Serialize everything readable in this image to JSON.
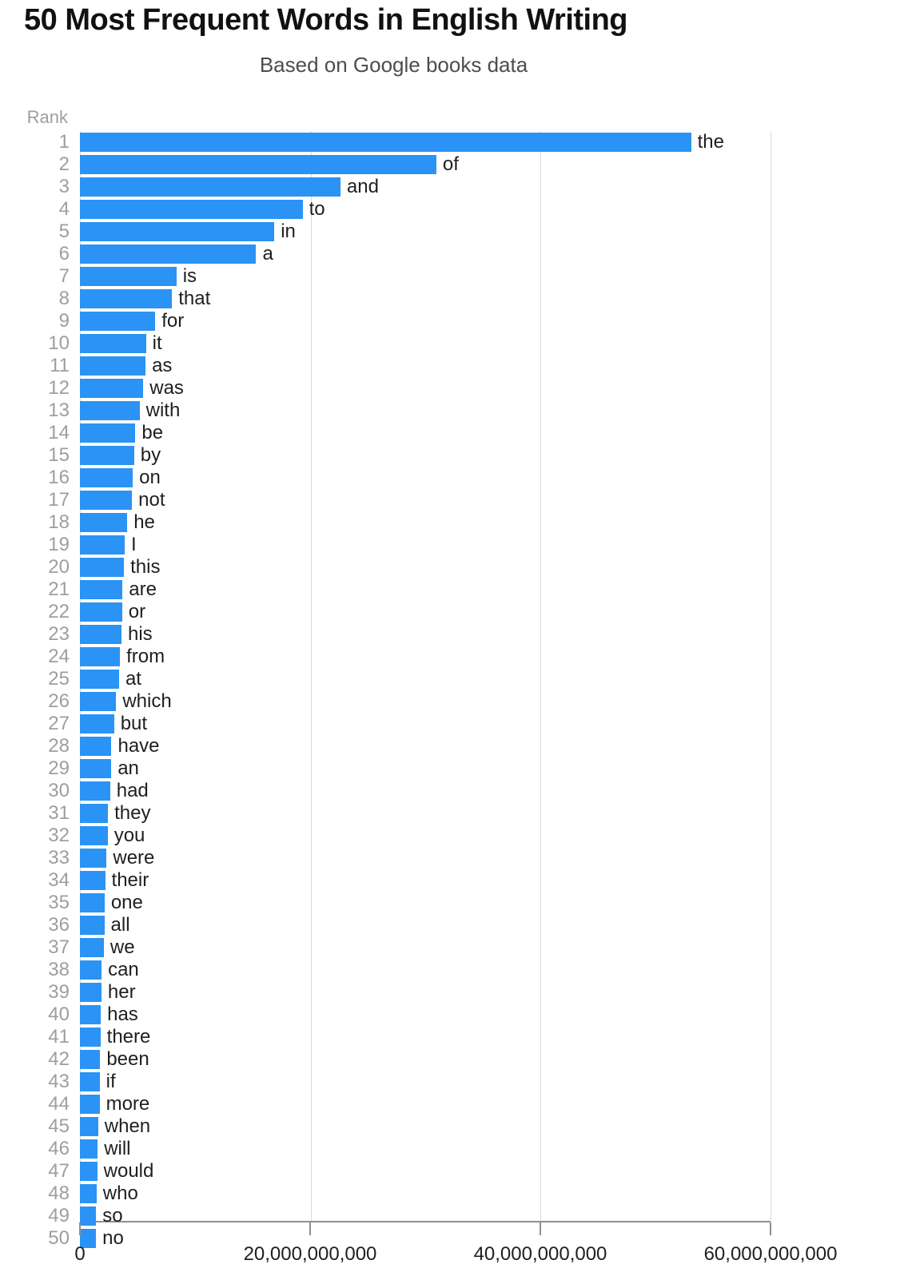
{
  "header": {
    "title": "50 Most Frequent Words in English Writing",
    "subtitle": "Based on Google books data"
  },
  "colors": {
    "bar": "#2a93f5",
    "gridline": "#d9d9d9",
    "axis": "#8f8f8f",
    "rank_label": "#9e9e9e",
    "text": "#1f1f1f"
  },
  "chart_data": {
    "type": "bar",
    "orientation": "horizontal",
    "title": "50 Most Frequent Words in English Writing",
    "subtitle": "Based on Google books data",
    "xlabel": "",
    "ylabel": "Rank",
    "xlim": [
      0,
      60000000000
    ],
    "x_ticks": [
      0,
      20000000000,
      40000000000,
      60000000000
    ],
    "x_tick_labels": [
      "0",
      "20,000,000,000",
      "40,000,000,000",
      "60,000,000,000"
    ],
    "grid": true,
    "legend": false,
    "bar_color": "#2a93f5",
    "rows": [
      {
        "rank": 1,
        "word": "the",
        "value": 53097401461
      },
      {
        "rank": 2,
        "word": "of",
        "value": 30966074232
      },
      {
        "rank": 3,
        "word": "and",
        "value": 22632024504
      },
      {
        "rank": 4,
        "word": "to",
        "value": 19347398077
      },
      {
        "rank": 5,
        "word": "in",
        "value": 16891065263
      },
      {
        "rank": 6,
        "word": "a",
        "value": 15310087895
      },
      {
        "rank": 7,
        "word": "is",
        "value": 8384246685
      },
      {
        "rank": 8,
        "word": "that",
        "value": 8000768228
      },
      {
        "rank": 9,
        "word": "for",
        "value": 6545282031
      },
      {
        "rank": 10,
        "word": "it",
        "value": 5740085369
      },
      {
        "rank": 11,
        "word": "as",
        "value": 5700645258
      },
      {
        "rank": 12,
        "word": "was",
        "value": 5502643843
      },
      {
        "rank": 13,
        "word": "with",
        "value": 5182797249
      },
      {
        "rank": 14,
        "word": "be",
        "value": 4818864785
      },
      {
        "rank": 15,
        "word": "by",
        "value": 4703106084
      },
      {
        "rank": 16,
        "word": "on",
        "value": 4594521081
      },
      {
        "rank": 17,
        "word": "not",
        "value": 4522732626
      },
      {
        "rank": 18,
        "word": "he",
        "value": 4110957426
      },
      {
        "rank": 19,
        "word": "I",
        "value": 3884828634
      },
      {
        "rank": 20,
        "word": "this",
        "value": 3826081315
      },
      {
        "rank": 21,
        "word": "are",
        "value": 3700941594
      },
      {
        "rank": 22,
        "word": "or",
        "value": 3665715444
      },
      {
        "rank": 23,
        "word": "his",
        "value": 3611746843
      },
      {
        "rank": 24,
        "word": "from",
        "value": 3478840705
      },
      {
        "rank": 25,
        "word": "at",
        "value": 3400031103
      },
      {
        "rank": 26,
        "word": "which",
        "value": 3148136268
      },
      {
        "rank": 27,
        "word": "but",
        "value": 2966014551
      },
      {
        "rank": 28,
        "word": "have",
        "value": 2742049655
      },
      {
        "rank": 29,
        "word": "an",
        "value": 2721477211
      },
      {
        "rank": 30,
        "word": "had",
        "value": 2620019952
      },
      {
        "rank": 31,
        "word": "they",
        "value": 2438279246
      },
      {
        "rank": 32,
        "word": "you",
        "value": 2410412603
      },
      {
        "rank": 33,
        "word": "were",
        "value": 2318197377
      },
      {
        "rank": 34,
        "word": "their",
        "value": 2190727483
      },
      {
        "rank": 35,
        "word": "one",
        "value": 2140512583
      },
      {
        "rank": 36,
        "word": "all",
        "value": 2120741135
      },
      {
        "rank": 37,
        "word": "we",
        "value": 2073872192
      },
      {
        "rank": 38,
        "word": "can",
        "value": 1879935142
      },
      {
        "rank": 39,
        "word": "her",
        "value": 1868587006
      },
      {
        "rank": 40,
        "word": "has",
        "value": 1814151527
      },
      {
        "rank": 41,
        "word": "there",
        "value": 1782628853
      },
      {
        "rank": 42,
        "word": "been",
        "value": 1759144197
      },
      {
        "rank": 43,
        "word": "if",
        "value": 1712500686
      },
      {
        "rank": 44,
        "word": "more",
        "value": 1708882447
      },
      {
        "rank": 45,
        "word": "when",
        "value": 1581746291
      },
      {
        "rank": 46,
        "word": "will",
        "value": 1541313732
      },
      {
        "rank": 47,
        "word": "would",
        "value": 1502932687
      },
      {
        "rank": 48,
        "word": "who",
        "value": 1443985497
      },
      {
        "rank": 49,
        "word": "so",
        "value": 1410174529
      },
      {
        "rank": 50,
        "word": "no",
        "value": 1396145663
      }
    ]
  }
}
